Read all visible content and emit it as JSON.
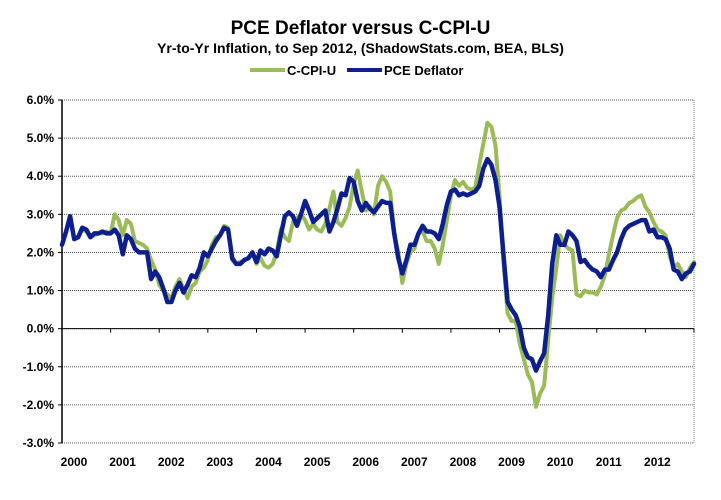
{
  "chart_data": {
    "type": "line",
    "title": "PCE Deflator versus C-CPI-U",
    "subtitle": "Yr-to-Yr Inflation, to Sep 2012, (ShadowStats.com, BEA, BLS)",
    "xlabel": "",
    "ylabel": "",
    "ylim": [
      -3.0,
      6.0
    ],
    "xlim": [
      2000,
      2013
    ],
    "grid": true,
    "legend_position": "top-center",
    "y_ticks": [
      "6.0%",
      "5.0%",
      "4.0%",
      "3.0%",
      "2.0%",
      "1.0%",
      "0.0%",
      "-1.0%",
      "-2.0%",
      "-3.0%"
    ],
    "y_tick_values": [
      6,
      5,
      4,
      3,
      2,
      1,
      0,
      -1,
      -2,
      -3
    ],
    "x_ticks": [
      "2000",
      "2001",
      "2002",
      "2003",
      "2004",
      "2005",
      "2006",
      "2007",
      "2008",
      "2009",
      "2010",
      "2011",
      "2012"
    ],
    "x_start": "2000-01",
    "frequency": "monthly",
    "series": [
      {
        "name": "C-CPI-U",
        "color": "#9bbb59",
        "values": [
          2.2,
          2.55,
          2.95,
          2.35,
          2.4,
          2.6,
          2.55,
          2.4,
          2.45,
          2.5,
          2.5,
          2.55,
          2.5,
          3.0,
          2.85,
          2.45,
          2.85,
          2.75,
          2.3,
          2.25,
          2.2,
          2.1,
          1.8,
          1.55,
          1.15,
          1.0,
          0.9,
          0.8,
          1.1,
          1.3,
          1.05,
          0.8,
          1.1,
          1.2,
          1.5,
          1.6,
          1.8,
          2.2,
          2.4,
          2.45,
          2.7,
          2.65,
          1.8,
          1.7,
          1.75,
          1.8,
          1.85,
          2.0,
          1.7,
          1.85,
          1.65,
          1.6,
          1.7,
          2.0,
          2.6,
          2.4,
          2.3,
          2.8,
          2.9,
          3.0,
          2.85,
          2.6,
          2.75,
          2.6,
          2.55,
          2.75,
          3.15,
          3.6,
          2.8,
          2.7,
          2.9,
          3.2,
          3.8,
          4.15,
          3.6,
          3.1,
          3.2,
          3.0,
          3.75,
          4.0,
          3.85,
          3.6,
          2.5,
          2.0,
          1.2,
          1.7,
          2.0,
          2.1,
          2.5,
          2.55,
          2.3,
          2.3,
          2.1,
          1.7,
          2.2,
          2.85,
          3.5,
          3.9,
          3.75,
          3.85,
          3.7,
          3.65,
          3.7,
          4.3,
          4.85,
          5.4,
          5.3,
          4.8,
          3.5,
          1.7,
          0.4,
          0.2,
          0.2,
          -0.4,
          -0.8,
          -1.2,
          -1.4,
          -2.05,
          -1.7,
          -1.5,
          -0.3,
          0.8,
          1.6,
          2.45,
          2.2,
          2.1,
          2.05,
          0.9,
          0.85,
          1.0,
          0.95,
          0.95,
          0.9,
          1.1,
          1.4,
          1.95,
          2.45,
          2.9,
          3.1,
          3.15,
          3.3,
          3.35,
          3.45,
          3.5,
          3.2,
          3.05,
          2.8,
          2.6,
          2.55,
          2.45,
          1.9,
          1.6,
          1.7,
          1.5,
          1.35,
          1.6,
          1.75
        ]
      },
      {
        "name": "PCE Deflator",
        "color": "#0d1f8f",
        "values": [
          2.2,
          2.55,
          2.95,
          2.35,
          2.4,
          2.65,
          2.6,
          2.4,
          2.5,
          2.5,
          2.55,
          2.5,
          2.5,
          2.6,
          2.45,
          1.95,
          2.45,
          2.35,
          2.1,
          2.0,
          2.0,
          2.0,
          1.3,
          1.5,
          1.35,
          1.05,
          0.7,
          0.7,
          1.0,
          1.2,
          0.95,
          1.15,
          1.4,
          1.35,
          1.6,
          2.0,
          1.9,
          2.1,
          2.3,
          2.45,
          2.65,
          2.6,
          1.85,
          1.7,
          1.7,
          1.8,
          1.85,
          2.0,
          1.75,
          2.05,
          1.95,
          2.1,
          2.05,
          1.9,
          2.45,
          2.95,
          3.05,
          2.95,
          2.7,
          3.0,
          3.35,
          3.1,
          2.8,
          2.9,
          3.0,
          3.1,
          2.55,
          2.8,
          3.15,
          3.55,
          3.5,
          3.95,
          3.85,
          3.35,
          3.1,
          3.3,
          3.15,
          3.05,
          3.2,
          3.35,
          3.3,
          3.3,
          2.5,
          1.85,
          1.45,
          1.8,
          2.2,
          2.2,
          2.5,
          2.7,
          2.55,
          2.55,
          2.5,
          2.35,
          2.75,
          3.25,
          3.6,
          3.65,
          3.5,
          3.55,
          3.5,
          3.55,
          3.6,
          3.75,
          4.2,
          4.45,
          4.3,
          3.9,
          3.2,
          1.9,
          0.7,
          0.5,
          0.35,
          0.05,
          -0.5,
          -0.75,
          -0.8,
          -1.1,
          -0.85,
          -0.65,
          0.35,
          1.7,
          2.45,
          2.2,
          2.2,
          2.55,
          2.45,
          2.3,
          1.75,
          1.8,
          1.65,
          1.55,
          1.5,
          1.35,
          1.55,
          1.55,
          1.8,
          2.0,
          2.35,
          2.6,
          2.7,
          2.75,
          2.8,
          2.85,
          2.85,
          2.55,
          2.6,
          2.4,
          2.4,
          2.35,
          2.1,
          1.55,
          1.5,
          1.3,
          1.45,
          1.5,
          1.7
        ]
      }
    ]
  }
}
